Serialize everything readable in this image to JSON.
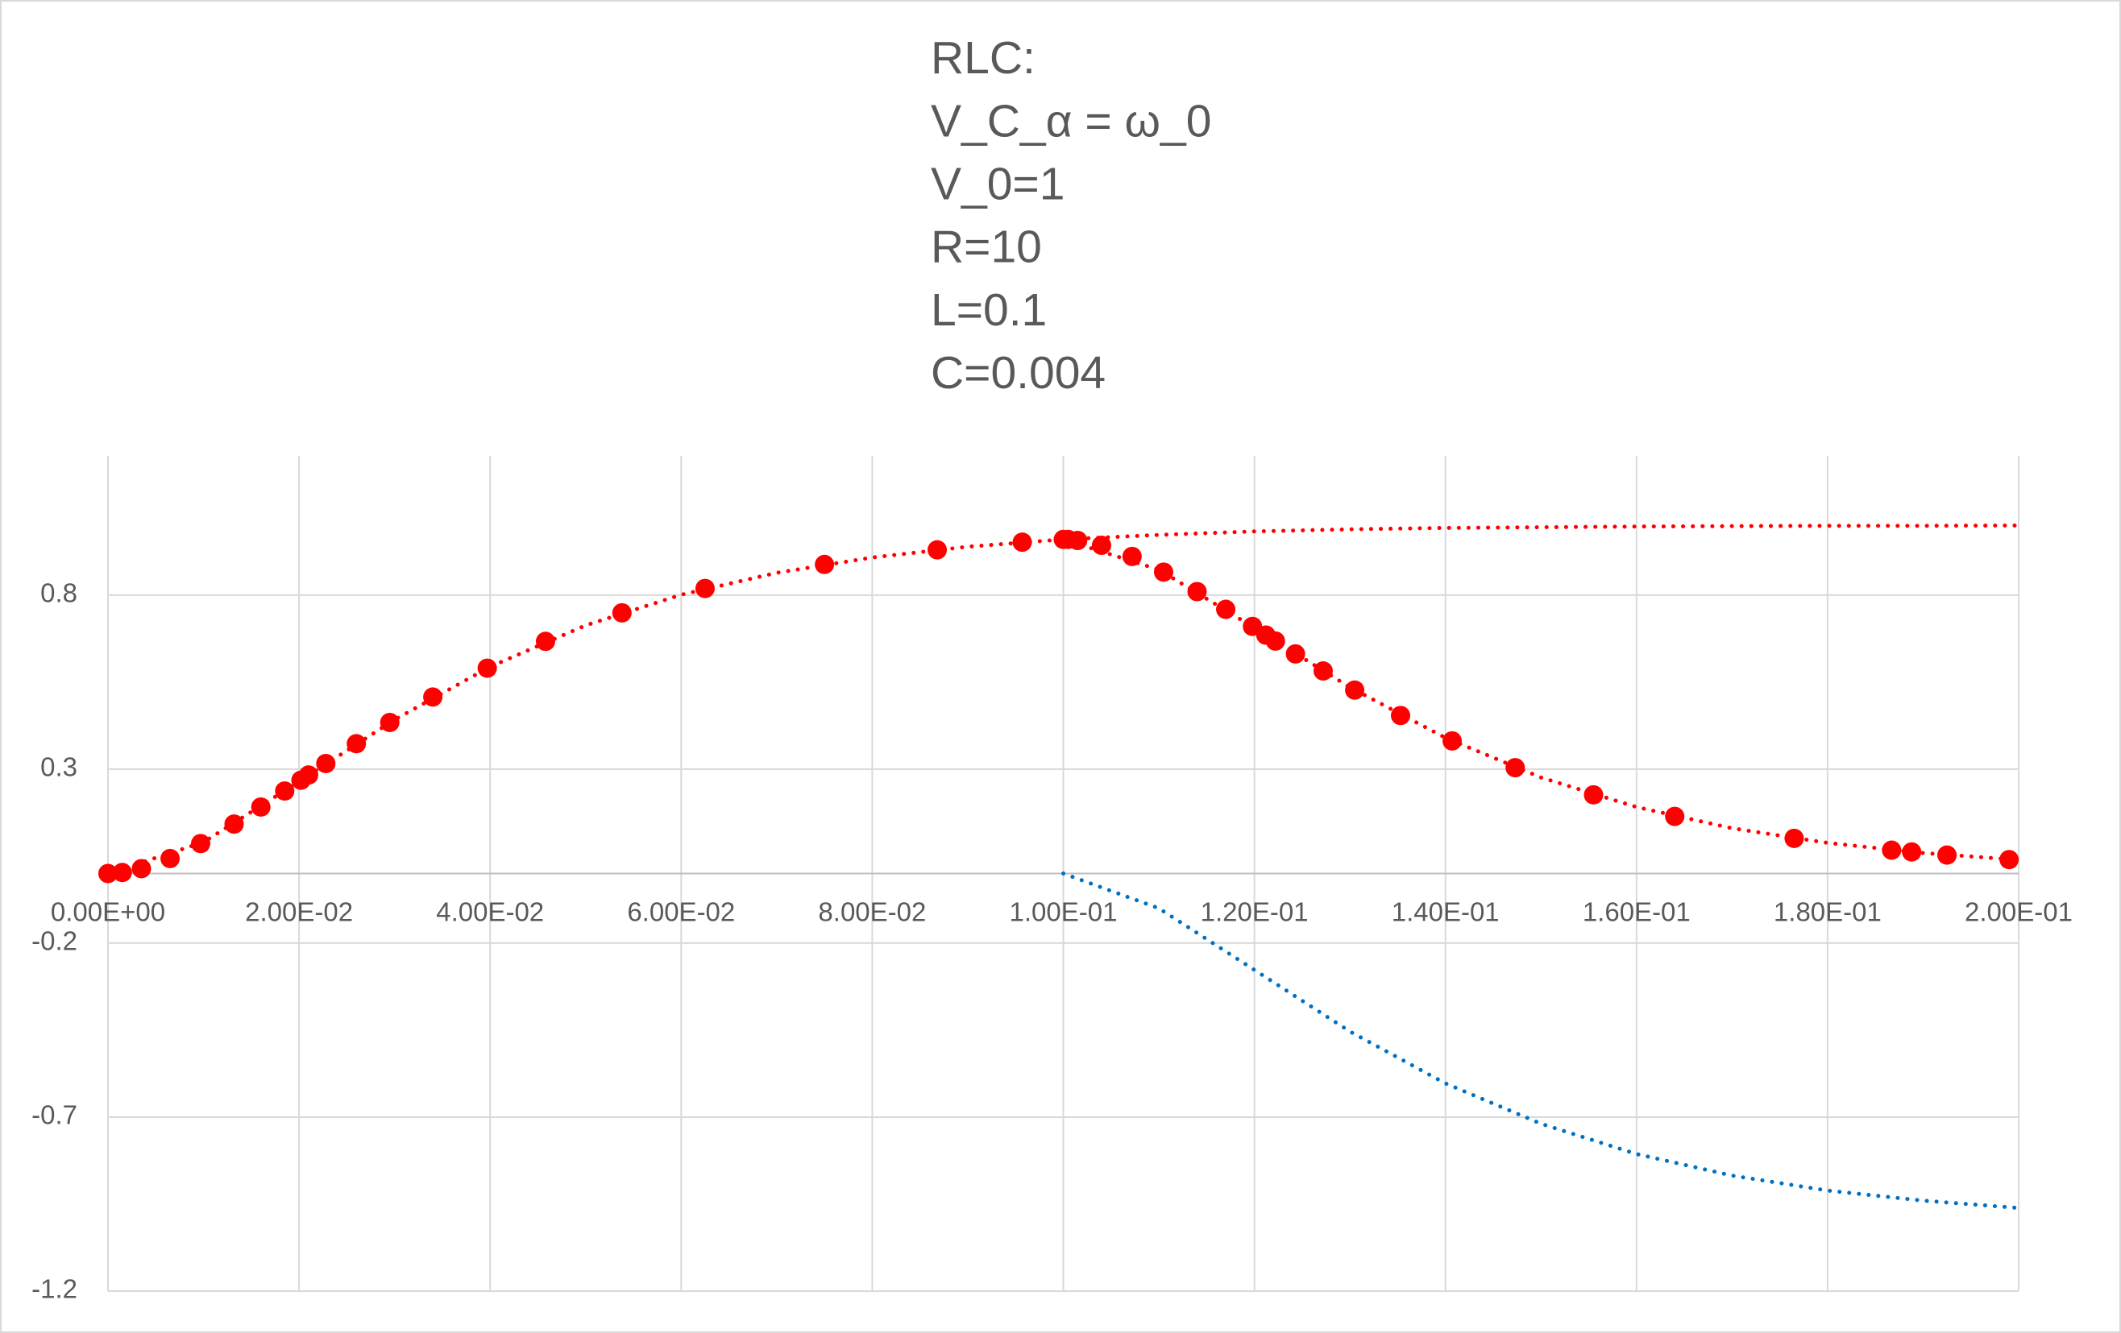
{
  "chart_data": {
    "type": "scatter",
    "title": [
      "RLC:",
      "V_C_α = ω_0",
      "V_0=1",
      "R=10",
      "L=0.1",
      "C=0.004"
    ],
    "xlim": [
      0,
      0.2
    ],
    "ylim": [
      -1.2,
      1.2
    ],
    "xticks": [
      {
        "value": 0,
        "label": "0.00E+00"
      },
      {
        "value": 0.02,
        "label": "2.00E-02"
      },
      {
        "value": 0.04,
        "label": "4.00E-02"
      },
      {
        "value": 0.06,
        "label": "6.00E-02"
      },
      {
        "value": 0.08,
        "label": "8.00E-02"
      },
      {
        "value": 0.1,
        "label": "1.00E-01"
      },
      {
        "value": 0.12,
        "label": "1.20E-01"
      },
      {
        "value": 0.14,
        "label": "1.40E-01"
      },
      {
        "value": 0.16,
        "label": "1.60E-01"
      },
      {
        "value": 0.18,
        "label": "1.80E-01"
      },
      {
        "value": 0.2,
        "label": "2.00E-01"
      }
    ],
    "yticks": [
      -1.2,
      -0.7,
      -0.2,
      0.3,
      0.8
    ],
    "grid": true,
    "series": [
      {
        "mode": "markers",
        "color": "#ff0000",
        "x": [
          0,
          0.0015,
          0.0035,
          0.0065,
          0.0097,
          0.0132,
          0.016,
          0.0185,
          0.0202,
          0.021,
          0.0228,
          0.026,
          0.0295,
          0.034,
          0.0397,
          0.0458,
          0.0538,
          0.0625,
          0.075,
          0.0868,
          0.0957,
          0.1,
          0.1005,
          0.1015,
          0.104,
          0.1072,
          0.1105,
          0.114,
          0.117,
          0.1198,
          0.1212,
          0.1222,
          0.1243,
          0.1272,
          0.1305,
          0.1353,
          0.1407,
          0.1473,
          0.1555,
          0.164,
          0.1765,
          0.1867,
          0.1888,
          0.1925,
          0.199
        ],
        "values": [
          0,
          0.003,
          0.014,
          0.043,
          0.086,
          0.142,
          0.191,
          0.237,
          0.268,
          0.283,
          0.316,
          0.373,
          0.434,
          0.507,
          0.59,
          0.667,
          0.749,
          0.819,
          0.888,
          0.93,
          0.952,
          0.96,
          0.96,
          0.957,
          0.943,
          0.911,
          0.866,
          0.81,
          0.759,
          0.71,
          0.685,
          0.668,
          0.631,
          0.582,
          0.527,
          0.454,
          0.381,
          0.304,
          0.226,
          0.164,
          0.101,
          0.067,
          0.062,
          0.053,
          0.04
        ]
      },
      {
        "mode": "dotted-line",
        "color": "#ff0000",
        "x": [
          0,
          0.01,
          0.02,
          0.03,
          0.04,
          0.05,
          0.06,
          0.07,
          0.08,
          0.09,
          0.1,
          0.11,
          0.12,
          0.13,
          0.14,
          0.15,
          0.16,
          0.17,
          0.18,
          0.19,
          0.2
        ],
        "values": [
          0,
          0.09,
          0.264,
          0.442,
          0.594,
          0.713,
          0.801,
          0.864,
          0.908,
          0.939,
          0.96,
          0.973,
          0.983,
          0.989,
          0.993,
          0.995,
          0.997,
          0.998,
          0.999,
          0.999,
          1.0
        ]
      },
      {
        "mode": "dotted-line",
        "color": "#ff0000",
        "x": [
          0.1,
          0.11,
          0.12,
          0.13,
          0.14,
          0.15,
          0.16,
          0.17,
          0.18,
          0.19,
          0.2
        ],
        "values": [
          0.96,
          0.873,
          0.706,
          0.535,
          0.39,
          0.276,
          0.191,
          0.13,
          0.088,
          0.059,
          0.039
        ]
      },
      {
        "mode": "dotted-line",
        "color": "#0070c0",
        "x": [
          0.1,
          0.11,
          0.12,
          0.13,
          0.14,
          0.15,
          0.16,
          0.17,
          0.18,
          0.19,
          0.2
        ],
        "values": [
          0,
          -0.1,
          -0.277,
          -0.454,
          -0.603,
          -0.719,
          -0.806,
          -0.868,
          -0.911,
          -0.94,
          -0.961
        ]
      }
    ]
  }
}
